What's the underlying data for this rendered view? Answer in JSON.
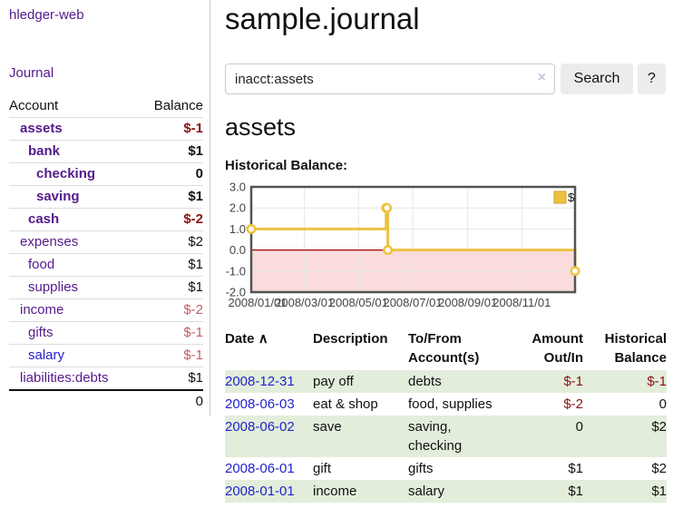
{
  "app_title": "hledger-web",
  "sidebar": {
    "journal_link": "Journal",
    "accounts": {
      "headers": {
        "account": "Account",
        "balance": "Balance"
      },
      "rows": [
        {
          "label": "assets",
          "balance": "$-1",
          "indent": 1,
          "bold": true,
          "neg": "strong"
        },
        {
          "label": "bank",
          "balance": "$1",
          "indent": 2,
          "bold": true,
          "neg": ""
        },
        {
          "label": "checking",
          "balance": "0",
          "indent": 3,
          "bold": true,
          "neg": ""
        },
        {
          "label": "saving",
          "balance": "$1",
          "indent": 3,
          "bold": true,
          "neg": ""
        },
        {
          "label": "cash",
          "balance": "$-2",
          "indent": 2,
          "bold": true,
          "neg": "strong"
        },
        {
          "label": "expenses",
          "balance": "$2",
          "indent": 1,
          "bold": false,
          "neg": ""
        },
        {
          "label": "food",
          "balance": "$1",
          "indent": 2,
          "bold": false,
          "neg": ""
        },
        {
          "label": "supplies",
          "balance": "$1",
          "indent": 2,
          "bold": false,
          "neg": ""
        },
        {
          "label": "income",
          "balance": "$-2",
          "indent": 1,
          "bold": false,
          "neg": "muted"
        },
        {
          "label": "gifts",
          "balance": "$-1",
          "indent": 2,
          "bold": false,
          "neg": "muted"
        },
        {
          "label": "salary",
          "balance": "$-1",
          "indent": 2,
          "bold": false,
          "neg": "muted",
          "link_color": "blue"
        },
        {
          "label": "liabilities:debts",
          "balance": "$1",
          "indent": 1,
          "bold": false,
          "neg": ""
        }
      ],
      "total": "0"
    }
  },
  "main": {
    "title": "sample.journal",
    "search": {
      "value": "inacct:assets",
      "clear_icon": "×",
      "search_button": "Search",
      "help_button": "?"
    },
    "account_heading": "assets",
    "chart_label": "Historical Balance:"
  },
  "chart_data": {
    "type": "line",
    "title": "Historical Balance:",
    "step": true,
    "x": [
      "2008/01/01",
      "2008/06/01",
      "2008/06/02",
      "2008/06/03",
      "2008/12/31"
    ],
    "series": [
      {
        "name": "$",
        "color": "#edc240",
        "values": [
          1,
          2,
          2,
          0,
          -1
        ]
      }
    ],
    "xlim": [
      "2008/01/01",
      "2008/12/31"
    ],
    "ylim": [
      -2,
      3
    ],
    "yticks": [
      3,
      2,
      1,
      0,
      -1,
      -2
    ],
    "xticks": [
      "2008/01/01",
      "2008/03/01",
      "2008/05/01",
      "2008/07/01",
      "2008/09/01",
      "2008/11/01"
    ],
    "legend": {
      "position": "top-right",
      "entries": [
        "$"
      ]
    },
    "grid": true,
    "negative_region_fill": "#fadcdc",
    "zero_line_color": "#a40000",
    "border_color": "#545454"
  },
  "transactions": {
    "headers": {
      "date": "Date",
      "sort_icon": "∧",
      "description": "Description",
      "accounts": "To/From Account(s)",
      "amount": "Amount Out/In",
      "balance": "Historical Balance"
    },
    "rows": [
      {
        "date": "2008-12-31",
        "description": "pay off",
        "accounts": "debts",
        "amount": "$-1",
        "amount_neg": true,
        "balance": "$-1",
        "balance_neg": true
      },
      {
        "date": "2008-06-03",
        "description": "eat & shop",
        "accounts": "food, supplies",
        "amount": "$-2",
        "amount_neg": true,
        "balance": "0",
        "balance_neg": false
      },
      {
        "date": "2008-06-02",
        "description": "save",
        "accounts": "saving, checking",
        "amount": "0",
        "amount_neg": false,
        "balance": "$2",
        "balance_neg": false
      },
      {
        "date": "2008-06-01",
        "description": "gift",
        "accounts": "gifts",
        "amount": "$1",
        "amount_neg": false,
        "balance": "$2",
        "balance_neg": false
      },
      {
        "date": "2008-01-01",
        "description": "income",
        "accounts": "salary",
        "amount": "$1",
        "amount_neg": false,
        "balance": "$1",
        "balance_neg": false
      }
    ]
  },
  "colors": {
    "accent_purple": "#551a8b",
    "link_blue": "#2323cc",
    "negative_strong": "#8b1212",
    "negative_muted": "#c16065",
    "row_green": "#e2eedb",
    "button_gray": "#ececec",
    "chart_line": "#edc240"
  }
}
